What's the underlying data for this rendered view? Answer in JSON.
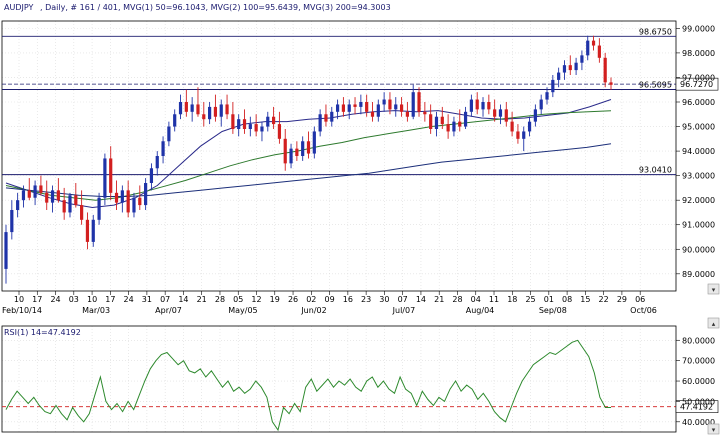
{
  "header": {
    "symbol": "AUDJPY",
    "info": ", Daily, # 161 / 401, MVG(1) 50=96.1043, MVG(2) 100=95.6439, MVG(3) 200=94.3003",
    "rsi_label": "RSI(1) 14=47.4192"
  },
  "colors": {
    "up": "#1f33a8",
    "down": "#d21f1f",
    "ma50": "#2a2a8a",
    "ma100": "#2e7a2e",
    "ma200": "#1c2f7a",
    "rsi_line": "#2e8a2e",
    "level_line": "#1c1c6e",
    "grid": "#dcdcdc",
    "current_line": "#1c1c6e"
  },
  "chart_data": [
    {
      "type": "candlestick",
      "title": "AUDJPY , Daily",
      "ylim": [
        88.3,
        99.3
      ],
      "y_ticks": [
        "89.0000",
        "90.0000",
        "91.0000",
        "92.0000",
        "93.0000",
        "94.0000",
        "95.0000",
        "96.0000",
        "97.0000",
        "98.0000",
        "99.0000"
      ],
      "x_tick_labels": [
        "10",
        "17",
        "24",
        "03",
        "10",
        "17",
        "24",
        "31",
        "07",
        "14",
        "21",
        "28",
        "05",
        "12",
        "19",
        "26",
        "02",
        "09",
        "16",
        "23",
        "30",
        "07",
        "14",
        "21",
        "28",
        "04",
        "11",
        "18",
        "25",
        "01",
        "08",
        "15",
        "22",
        "29",
        "06"
      ],
      "month_labels": [
        "Feb/10/14",
        "Mar/03",
        "Apr/07",
        "May/05",
        "Jun/02",
        "Jul/07",
        "Aug/04",
        "Sep/08",
        "Oct/06"
      ],
      "levels": [
        {
          "name": "98.6750",
          "value": 98.675
        },
        {
          "name": "96.5095",
          "value": 96.5095
        },
        {
          "name": "93.0410",
          "value": 93.041
        }
      ],
      "current_price": "96.7270",
      "series": [
        {
          "name": "MVG(1) 50",
          "last": 96.1043,
          "values": [
            92.7,
            92.4,
            92.1,
            91.85,
            91.7,
            91.8,
            92.1,
            92.6,
            93.4,
            94.2,
            94.8,
            95.1,
            95.2,
            95.2,
            95.3,
            95.35,
            95.5,
            95.6,
            95.65,
            95.6,
            95.65,
            95.5,
            95.35,
            95.3,
            95.35,
            95.45,
            95.55,
            95.8,
            96.1
          ]
        },
        {
          "name": "MVG(2) 100",
          "last": 95.6439,
          "values": [
            92.6,
            92.4,
            92.2,
            92.1,
            92.0,
            92.1,
            92.3,
            92.55,
            92.8,
            93.1,
            93.4,
            93.65,
            93.85,
            94.0,
            94.2,
            94.35,
            94.55,
            94.7,
            94.85,
            95.0,
            95.1,
            95.2,
            95.3,
            95.4,
            95.5,
            95.56,
            95.6,
            95.64
          ]
        },
        {
          "name": "MVG(3) 200",
          "last": 94.3003,
          "values": [
            92.5,
            92.4,
            92.3,
            92.2,
            92.15,
            92.15,
            92.2,
            92.3,
            92.4,
            92.5,
            92.6,
            92.7,
            92.8,
            92.9,
            93.0,
            93.1,
            93.25,
            93.4,
            93.55,
            93.65,
            93.75,
            93.85,
            93.95,
            94.05,
            94.15,
            94.3
          ]
        }
      ],
      "candles": [
        [
          89.2,
          91.0,
          88.6,
          90.7
        ],
        [
          90.7,
          92.0,
          90.4,
          91.6
        ],
        [
          91.6,
          92.3,
          91.3,
          92.0
        ],
        [
          92.0,
          92.6,
          91.7,
          92.4
        ],
        [
          92.4,
          92.9,
          92.0,
          92.1
        ],
        [
          92.1,
          92.8,
          91.8,
          92.6
        ],
        [
          92.6,
          93.0,
          92.2,
          92.3
        ],
        [
          92.3,
          92.8,
          91.6,
          91.9
        ],
        [
          91.9,
          92.6,
          91.5,
          92.4
        ],
        [
          92.4,
          92.9,
          91.9,
          92.0
        ],
        [
          92.0,
          92.5,
          91.2,
          91.5
        ],
        [
          91.5,
          92.3,
          91.3,
          92.2
        ],
        [
          92.2,
          92.7,
          91.7,
          91.8
        ],
        [
          91.8,
          92.4,
          91.0,
          91.2
        ],
        [
          91.2,
          91.5,
          90.0,
          90.3
        ],
        [
          90.3,
          91.4,
          90.1,
          91.2
        ],
        [
          91.2,
          92.3,
          91.0,
          92.1
        ],
        [
          92.1,
          93.9,
          91.8,
          93.7
        ],
        [
          93.7,
          94.2,
          92.0,
          92.3
        ],
        [
          92.3,
          92.8,
          91.6,
          91.9
        ],
        [
          91.9,
          92.6,
          91.5,
          92.4
        ],
        [
          92.4,
          92.8,
          91.3,
          91.5
        ],
        [
          91.5,
          92.3,
          91.3,
          92.1
        ],
        [
          92.1,
          92.6,
          91.6,
          91.8
        ],
        [
          91.8,
          92.9,
          91.6,
          92.7
        ],
        [
          92.7,
          93.5,
          92.4,
          93.3
        ],
        [
          93.3,
          94.0,
          93.0,
          93.8
        ],
        [
          93.8,
          94.6,
          93.5,
          94.4
        ],
        [
          94.4,
          95.2,
          94.2,
          95.0
        ],
        [
          95.0,
          95.7,
          94.8,
          95.5
        ],
        [
          95.5,
          96.3,
          95.3,
          96.0
        ],
        [
          96.0,
          96.5,
          95.4,
          95.6
        ],
        [
          95.6,
          96.2,
          95.2,
          95.9
        ],
        [
          95.9,
          96.6,
          95.4,
          95.5
        ],
        [
          95.5,
          96.0,
          95.0,
          95.3
        ],
        [
          95.3,
          96.0,
          95.1,
          95.8
        ],
        [
          95.8,
          96.3,
          95.2,
          95.4
        ],
        [
          95.4,
          96.1,
          95.0,
          95.9
        ],
        [
          95.9,
          96.3,
          95.3,
          95.5
        ],
        [
          95.5,
          96.0,
          94.7,
          94.9
        ],
        [
          94.9,
          95.5,
          94.6,
          95.3
        ],
        [
          95.3,
          95.7,
          94.7,
          94.9
        ],
        [
          94.9,
          95.4,
          94.6,
          95.1
        ],
        [
          95.1,
          95.5,
          94.6,
          94.8
        ],
        [
          94.8,
          95.2,
          94.4,
          95.0
        ],
        [
          95.0,
          95.6,
          94.8,
          95.4
        ],
        [
          95.4,
          95.8,
          94.9,
          95.1
        ],
        [
          95.1,
          95.6,
          94.3,
          94.5
        ],
        [
          94.5,
          94.9,
          93.2,
          93.5
        ],
        [
          93.5,
          94.3,
          93.3,
          94.1
        ],
        [
          94.1,
          94.4,
          93.6,
          93.8
        ],
        [
          93.8,
          94.6,
          93.6,
          94.4
        ],
        [
          94.4,
          94.8,
          93.7,
          93.9
        ],
        [
          93.9,
          95.0,
          93.7,
          94.8
        ],
        [
          94.8,
          95.7,
          94.6,
          95.5
        ],
        [
          95.5,
          95.9,
          95.0,
          95.2
        ],
        [
          95.2,
          95.8,
          95.0,
          95.6
        ],
        [
          95.6,
          96.1,
          95.3,
          95.9
        ],
        [
          95.9,
          96.2,
          95.4,
          95.6
        ],
        [
          95.6,
          96.1,
          95.3,
          95.9
        ],
        [
          95.9,
          96.2,
          95.5,
          95.8
        ],
        [
          95.8,
          96.3,
          95.5,
          96.0
        ],
        [
          96.0,
          96.3,
          95.4,
          95.6
        ],
        [
          95.6,
          96.0,
          95.2,
          95.4
        ],
        [
          95.4,
          96.1,
          95.2,
          95.9
        ],
        [
          95.9,
          96.4,
          95.6,
          96.1
        ],
        [
          96.1,
          96.4,
          95.5,
          95.7
        ],
        [
          95.7,
          96.2,
          95.4,
          95.9
        ],
        [
          95.9,
          96.2,
          95.4,
          95.6
        ],
        [
          95.6,
          96.0,
          95.2,
          95.4
        ],
        [
          95.4,
          96.7,
          95.3,
          96.4
        ],
        [
          96.4,
          96.6,
          95.4,
          95.6
        ],
        [
          95.6,
          96.0,
          95.2,
          95.5
        ],
        [
          95.5,
          95.9,
          94.7,
          94.9
        ],
        [
          94.9,
          95.6,
          94.6,
          95.4
        ],
        [
          95.4,
          95.8,
          94.9,
          95.1
        ],
        [
          95.1,
          95.5,
          94.5,
          94.8
        ],
        [
          94.8,
          95.4,
          94.6,
          95.2
        ],
        [
          95.2,
          95.7,
          94.8,
          95.0
        ],
        [
          95.0,
          95.8,
          94.9,
          95.6
        ],
        [
          95.6,
          96.3,
          95.4,
          96.1
        ],
        [
          96.1,
          96.4,
          95.5,
          95.7
        ],
        [
          95.7,
          96.2,
          95.4,
          96.0
        ],
        [
          96.0,
          96.3,
          95.5,
          95.7
        ],
        [
          95.7,
          96.1,
          95.2,
          95.4
        ],
        [
          95.4,
          95.9,
          95.1,
          95.7
        ],
        [
          95.7,
          96.0,
          95.0,
          95.2
        ],
        [
          95.2,
          95.6,
          94.6,
          94.8
        ],
        [
          94.8,
          95.1,
          94.3,
          94.5
        ],
        [
          94.5,
          95.0,
          94.0,
          94.8
        ],
        [
          94.8,
          95.4,
          94.6,
          95.2
        ],
        [
          95.2,
          95.9,
          95.0,
          95.7
        ],
        [
          95.7,
          96.3,
          95.5,
          96.1
        ],
        [
          96.1,
          96.6,
          95.9,
          96.4
        ],
        [
          96.4,
          97.1,
          96.2,
          96.9
        ],
        [
          96.9,
          97.4,
          96.6,
          97.2
        ],
        [
          97.2,
          97.7,
          96.9,
          97.5
        ],
        [
          97.5,
          97.9,
          97.1,
          97.3
        ],
        [
          97.3,
          97.8,
          97.1,
          97.6
        ],
        [
          97.6,
          98.1,
          97.3,
          97.9
        ],
        [
          97.9,
          98.7,
          97.7,
          98.5
        ],
        [
          98.5,
          98.7,
          98.1,
          98.3
        ],
        [
          98.3,
          98.6,
          97.6,
          97.8
        ],
        [
          97.8,
          98.0,
          96.6,
          96.8
        ],
        [
          96.8,
          97.0,
          96.5,
          96.7
        ]
      ]
    },
    {
      "type": "line",
      "title": "RSI(1) 14",
      "ylim": [
        35,
        87
      ],
      "y_ticks": [
        "40.0000",
        "50.0000",
        "60.0000",
        "70.0000",
        "80.0000"
      ],
      "current_value": "47.4192",
      "reference_level": 47.4192,
      "series": [
        {
          "name": "RSI(1) 14",
          "values": [
            46,
            51,
            55,
            52,
            49,
            52,
            48,
            45,
            44,
            48,
            44,
            41,
            47,
            43,
            40,
            44,
            53,
            62,
            50,
            46,
            49,
            45,
            50,
            46,
            53,
            60,
            66,
            70,
            73,
            74,
            71,
            68,
            70,
            65,
            64,
            66,
            62,
            65,
            61,
            57,
            60,
            55,
            57,
            54,
            56,
            60,
            57,
            52,
            40,
            36,
            47,
            44,
            49,
            45,
            57,
            61,
            55,
            58,
            61,
            57,
            60,
            58,
            61,
            57,
            55,
            60,
            62,
            57,
            60,
            56,
            54,
            62,
            56,
            54,
            48,
            55,
            51,
            48,
            52,
            50,
            56,
            60,
            55,
            58,
            56,
            51,
            54,
            50,
            45,
            42,
            40,
            47,
            54,
            60,
            64,
            68,
            70,
            72,
            74,
            73,
            75,
            77,
            79,
            80,
            76,
            72,
            64,
            52,
            47,
            47
          ]
        }
      ]
    }
  ]
}
